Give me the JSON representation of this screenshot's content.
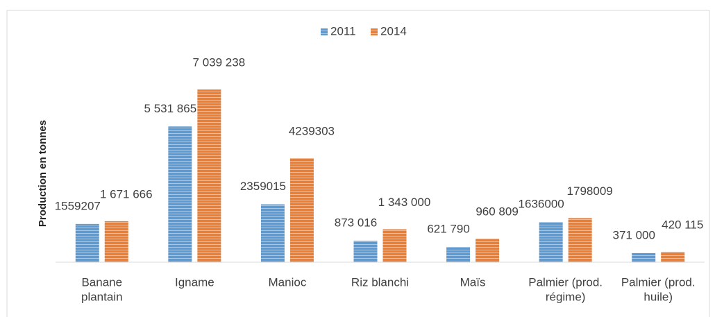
{
  "chart_data": {
    "type": "bar",
    "y_label": "Production en tonnes",
    "categories": [
      [
        "Banane",
        "plantain"
      ],
      [
        "Igname"
      ],
      [
        "Manioc"
      ],
      [
        "Riz blanchi"
      ],
      [
        "Maïs"
      ],
      [
        "Palmier (prod.",
        "régime)"
      ],
      [
        "Palmier  (prod.",
        "huile)"
      ]
    ],
    "series": [
      {
        "name": "2011",
        "color": "#5b9bd5",
        "values": [
          1559207,
          5531865,
          2359015,
          873016,
          621790,
          1636000,
          371000
        ],
        "value_labels": [
          "1559207",
          "5 531 865",
          "2359015",
          "873 016",
          "621 790",
          "1636000",
          "371 000"
        ]
      },
      {
        "name": "2014",
        "color": "#ed7d31",
        "values": [
          1671666,
          7039238,
          4239303,
          1343000,
          960809,
          1798009,
          420115
        ],
        "value_labels": [
          "1 671 666",
          "7 039 238",
          "4239303",
          "1 343 000",
          "960 809",
          "1798009",
          "420 115"
        ]
      }
    ],
    "ylim": [
      0,
      8000000
    ],
    "legend": "top"
  }
}
